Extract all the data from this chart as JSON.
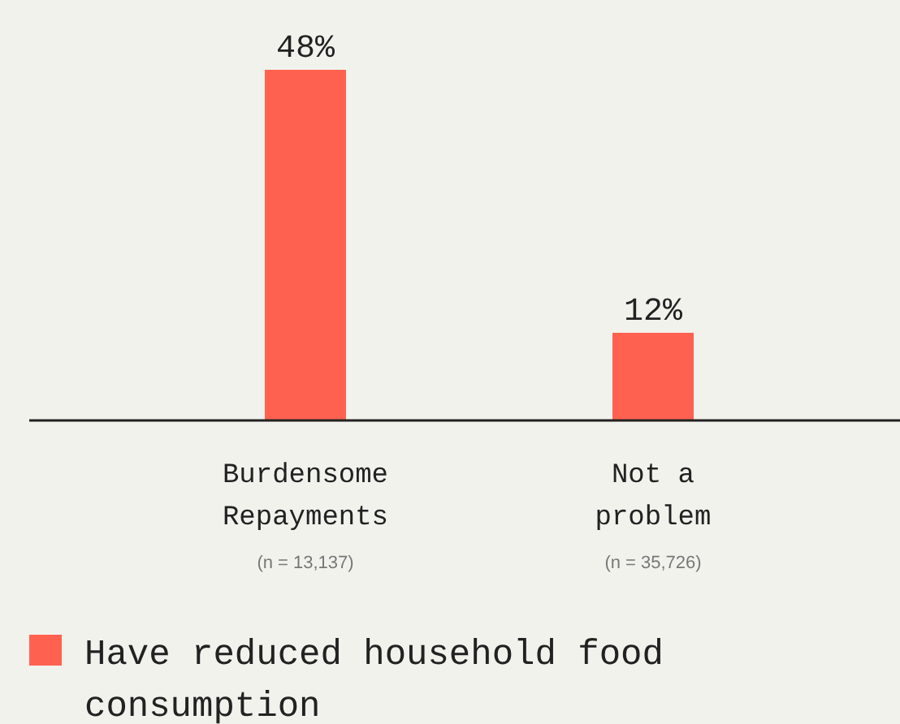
{
  "chart_data": {
    "type": "bar",
    "categories": [
      "Burdensome Repayments",
      "Not a problem"
    ],
    "series": [
      {
        "name": "Have reduced household food consumption",
        "color": "#ff6150",
        "values": [
          48,
          12
        ],
        "value_labels": [
          "48%",
          "12%"
        ]
      }
    ],
    "legend": "bottom",
    "annotations": [
      "(n = 13,137)",
      "(n = 35,726)"
    ]
  }
}
